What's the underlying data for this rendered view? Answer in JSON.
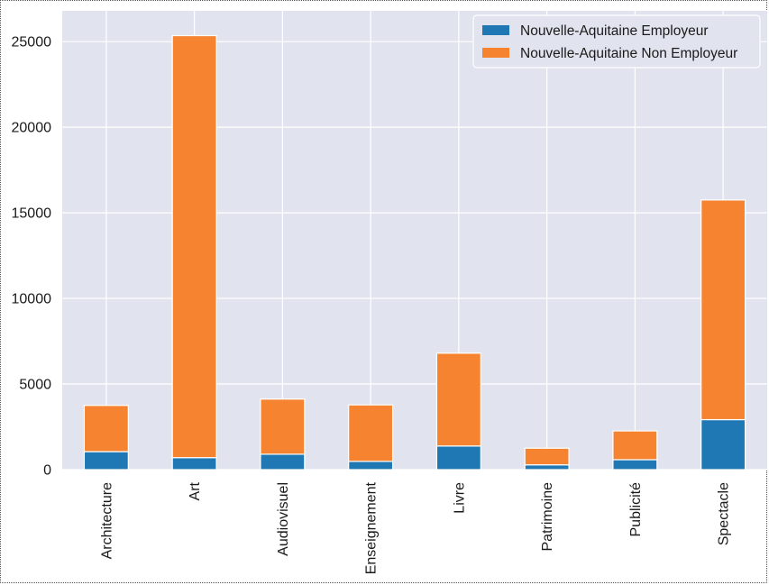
{
  "chart_data": {
    "type": "bar",
    "stacked": true,
    "categories": [
      "Architecture",
      "Art",
      "Audiovisuel",
      "Enseignement",
      "Livre",
      "Patrimoine",
      "Publicité",
      "Spectacle"
    ],
    "series": [
      {
        "name": "Nouvelle-Aquitaine Employeur",
        "color": "#1f77b4",
        "values": [
          1050,
          700,
          900,
          480,
          1380,
          280,
          580,
          2920
        ]
      },
      {
        "name": "Nouvelle-Aquitaine Non Employeur",
        "color": "#f58330",
        "values": [
          2700,
          24650,
          3220,
          3300,
          5420,
          970,
          1680,
          12830
        ]
      }
    ],
    "yticks": [
      0,
      5000,
      10000,
      15000,
      20000,
      25000
    ],
    "ylim": [
      0,
      26800
    ],
    "title": "",
    "xlabel": "",
    "ylabel": "",
    "grid": true,
    "legend_position": "top-right",
    "background": "#e1e4ee",
    "grid_color": "#ffffff"
  }
}
